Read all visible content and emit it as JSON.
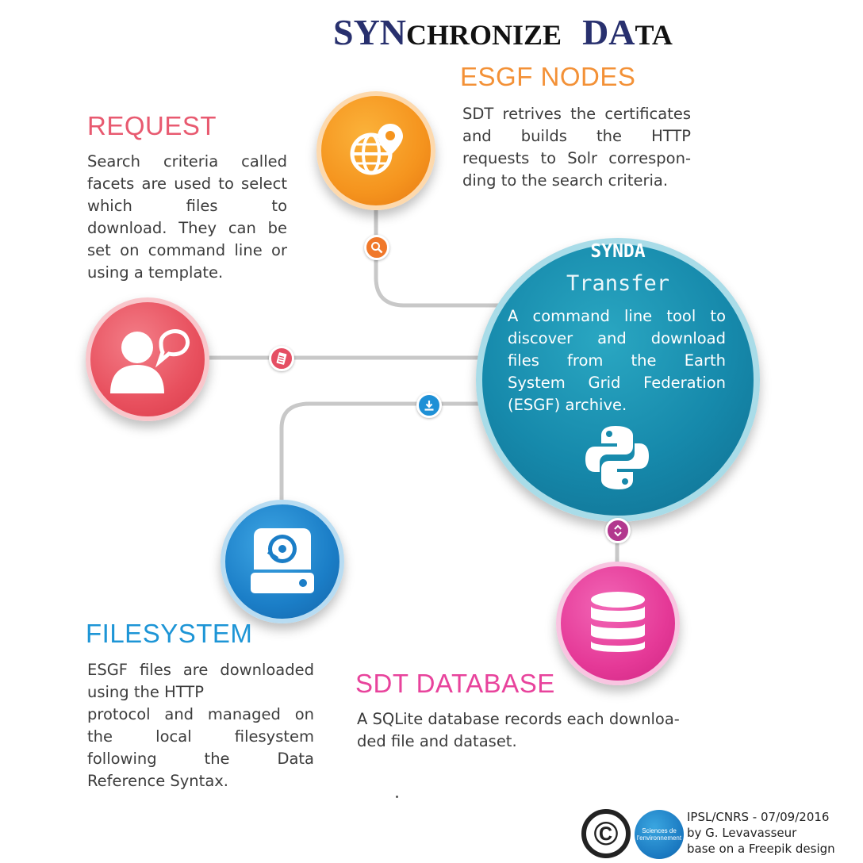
{
  "title": {
    "part1_big": "SYN",
    "part1_small": "CHRONIZE",
    "part2_big": "DA",
    "part2_small": "TA"
  },
  "esgf_nodes": {
    "heading": "ESGF NODES",
    "lines": [
      "SDT retrives the certificates",
      "and builds the HTTP",
      "requests to Solr correspon-",
      "ding to the search criteria."
    ],
    "icon": "globe-pin-icon",
    "color": "#f5941e"
  },
  "request": {
    "heading": "REQUEST",
    "lines": [
      "Search criteria called",
      "facets are used to select",
      "which files to",
      "download. They can be",
      "set on command line or",
      "using a template."
    ],
    "icon": "user-speech-icon",
    "color": "#e8505e"
  },
  "synda": {
    "title": "SYNDA",
    "subtitle": "Transfer",
    "lines": [
      "A command line tool to",
      "discover and download",
      "files from the Earth",
      "System Grid Federation",
      "(ESGF) archive."
    ],
    "icon": "python-logo-icon",
    "color": "#1689ab"
  },
  "filesystem": {
    "heading": "FILESYSTEM",
    "lines": [
      "ESGF files are downloaded",
      "using the HTTP",
      "protocol and managed on",
      "the local filesystem",
      "following the Data",
      "Reference Syntax."
    ],
    "icon": "hard-drive-icon",
    "color": "#1b7ec7"
  },
  "sdt_database": {
    "heading": "SDT DATABASE",
    "lines": [
      "A SQLite database records each downloa-",
      "ded file and dataset."
    ],
    "icon": "database-icon",
    "color": "#e53997"
  },
  "badges": {
    "search": "search-icon",
    "document": "document-icon",
    "download": "download-icon",
    "updown": "up-down-arrows-icon"
  },
  "footer": {
    "copyright_symbol": "©",
    "logo_text_1": "Sciences de",
    "logo_text_2": "l'environnement",
    "credit_line1": "IPSL/CNRS - 07/09/2016",
    "credit_line2": "by G. Levavasseur",
    "credit_line3": "base on a Freepik design"
  }
}
